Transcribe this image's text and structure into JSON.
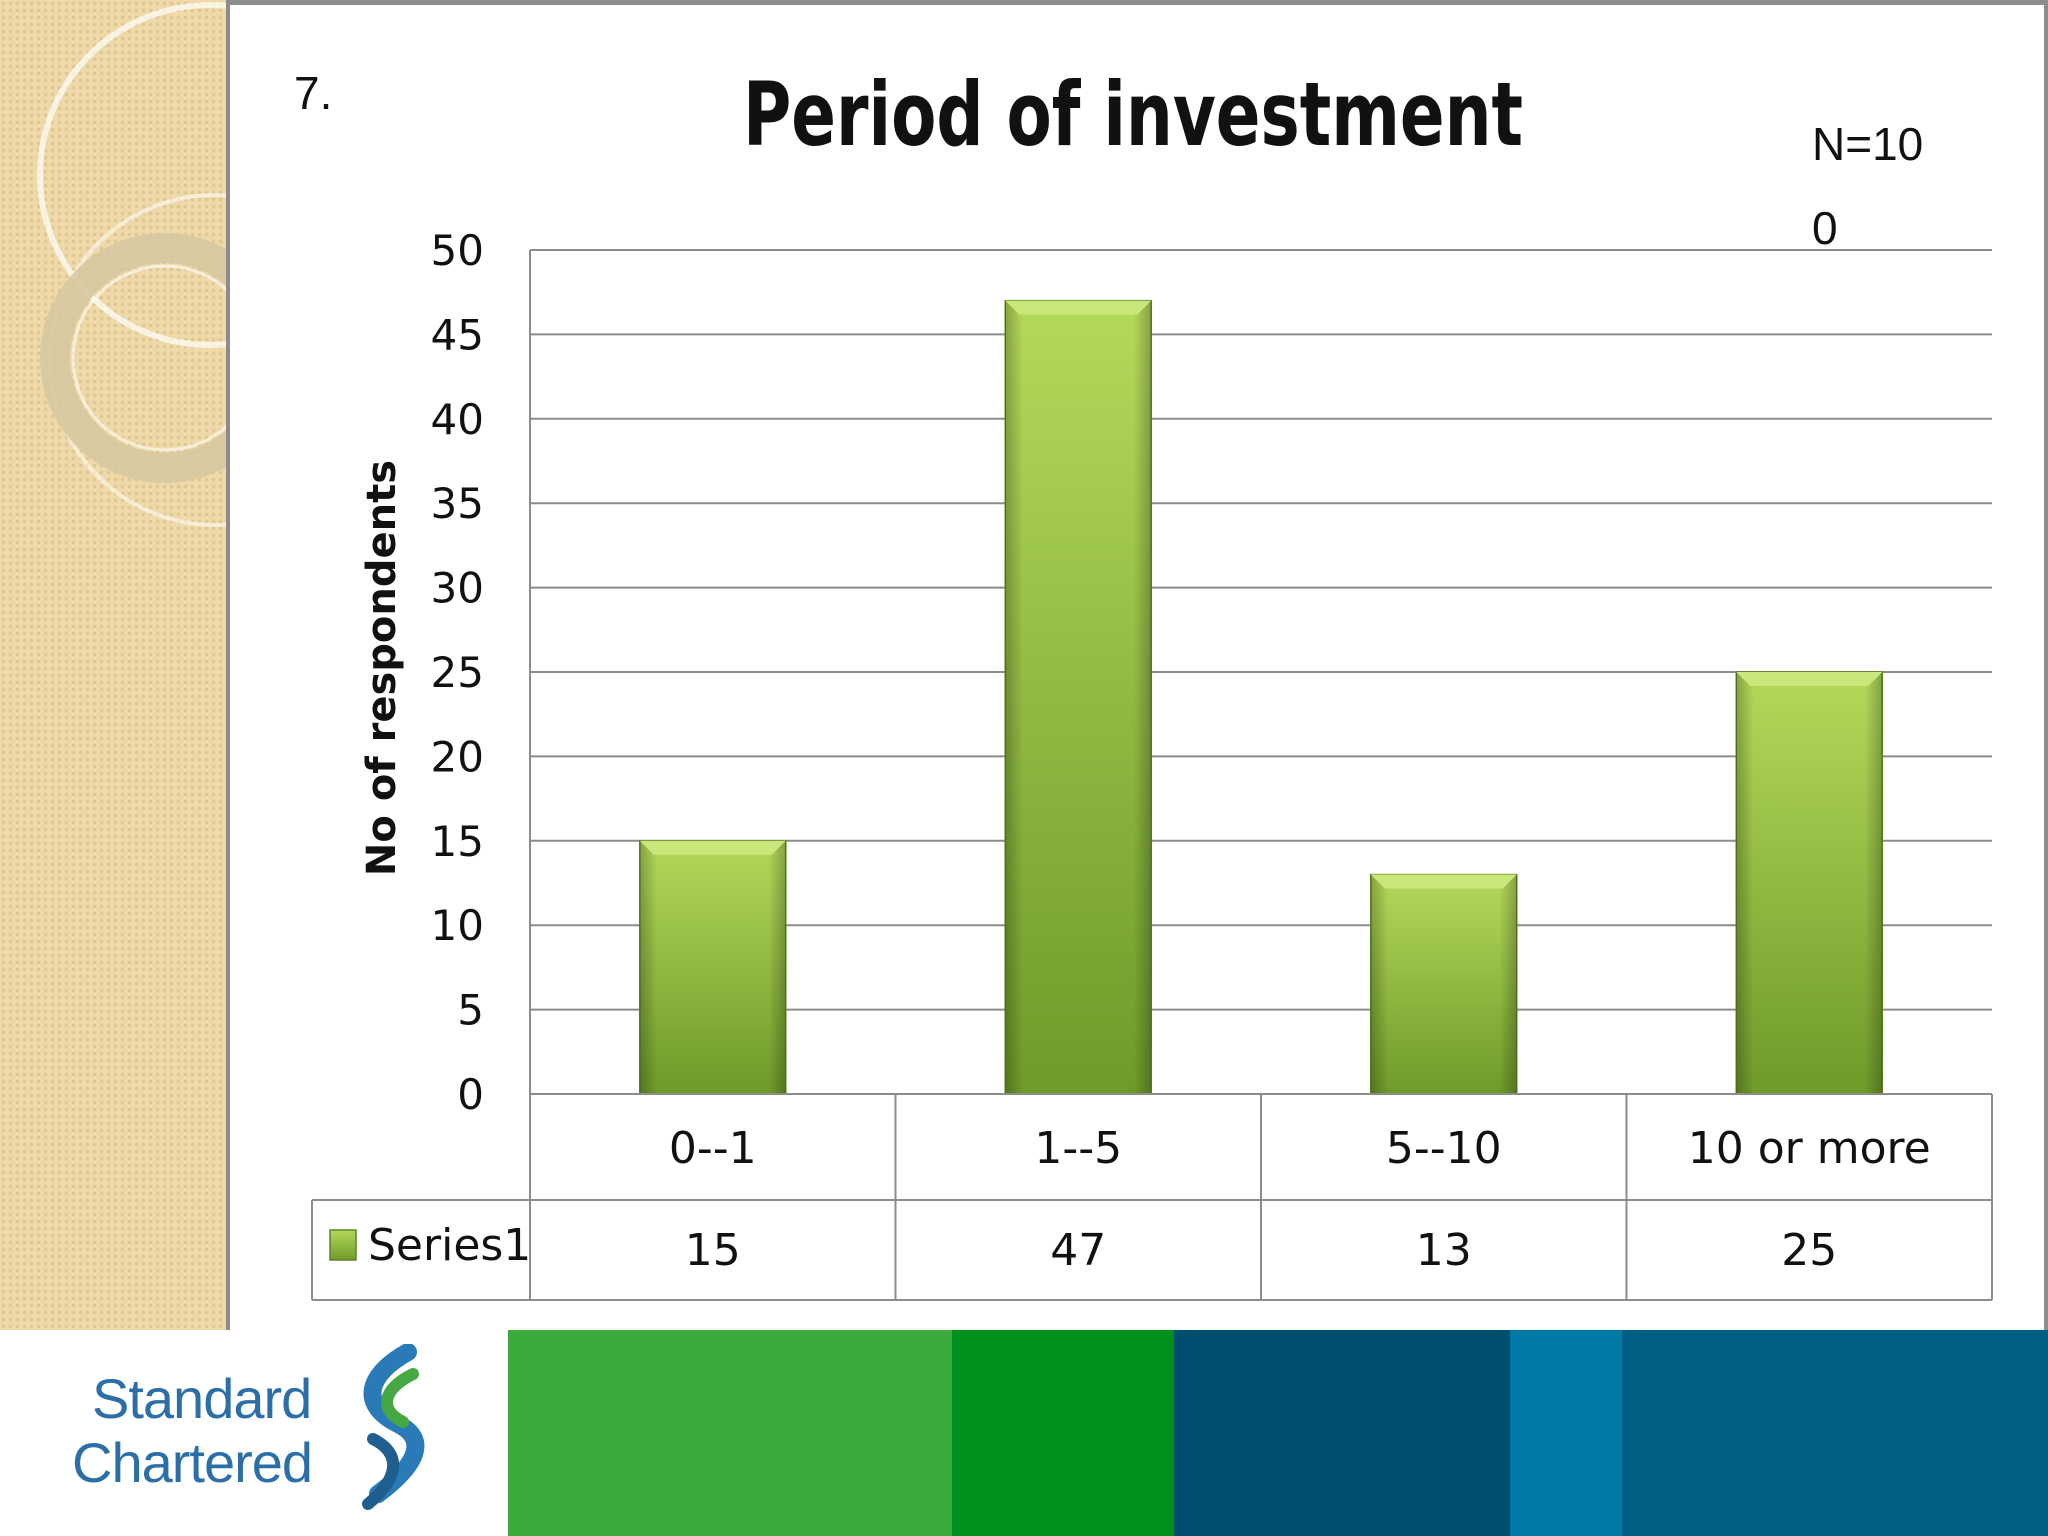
{
  "slide": {
    "number": "7.",
    "sample_size": "N=100"
  },
  "colors": {
    "bar_light": "#a8cf4f",
    "bar_dark": "#6f9a2a",
    "grid": "#8c8c8c",
    "stripe1": "#3caa3c",
    "stripe2": "#00901e",
    "stripe3": "#004e6e",
    "stripe4": "#0079a6",
    "stripe5": "#005f84"
  },
  "chart_data": {
    "type": "bar",
    "title": "Period of investment",
    "xlabel": "",
    "ylabel": "No of respondents",
    "categories": [
      "0--1",
      "1--5",
      "5--10",
      "10 or more"
    ],
    "series": [
      {
        "name": "Series1",
        "values": [
          15,
          47,
          13,
          25
        ]
      }
    ],
    "ylim": [
      0,
      50
    ],
    "yticks": [
      0,
      5,
      10,
      15,
      20,
      25,
      30,
      35,
      40,
      45,
      50
    ],
    "grid": true,
    "legend": "data-table"
  },
  "footer": {
    "logo_line1": "Standard",
    "logo_line2": "Chartered",
    "logo_icon": "standard-chartered-icon"
  }
}
